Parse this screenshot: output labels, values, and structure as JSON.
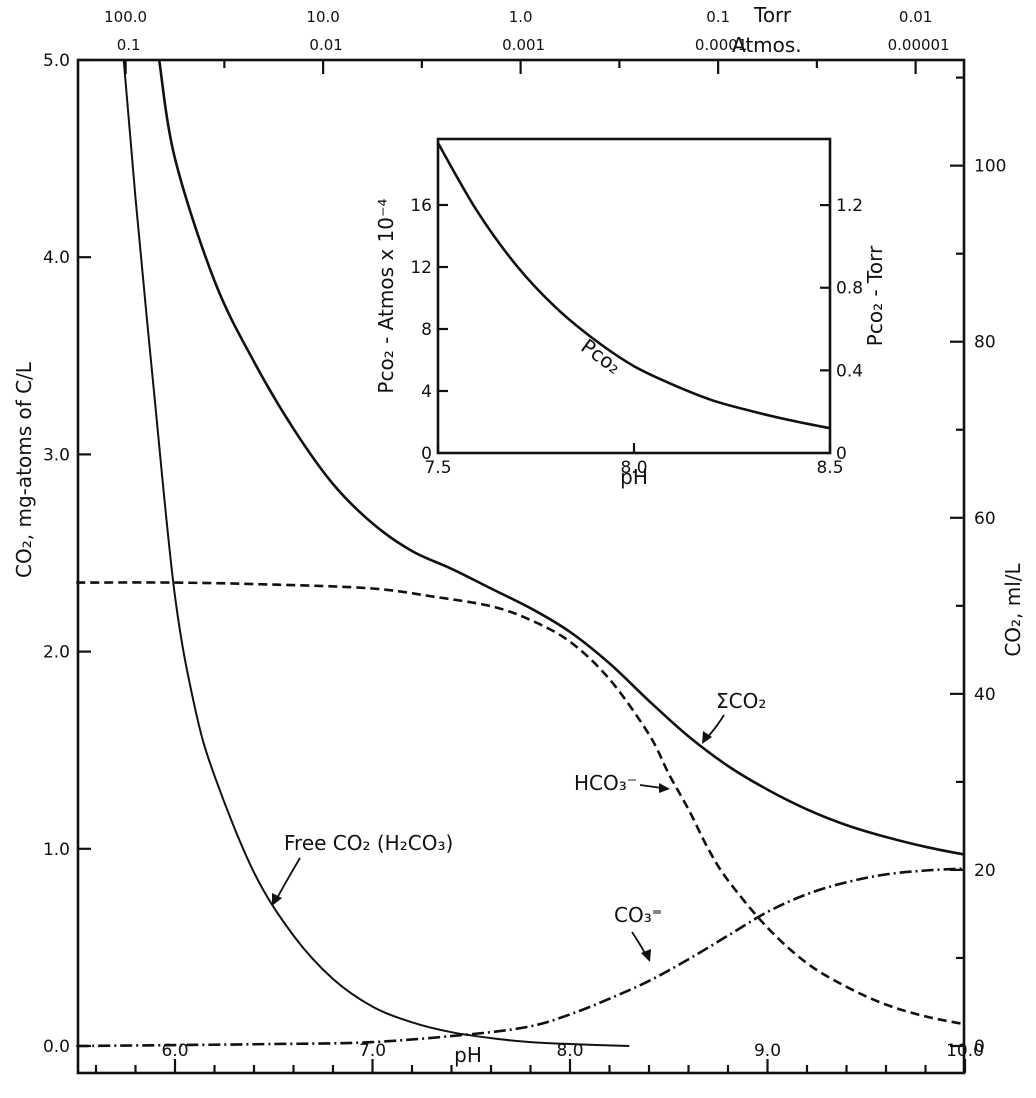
{
  "chart_data": {
    "type": "line",
    "axes": {
      "left_label": "CO₂, mg-atoms of C/L",
      "right_label": "CO₂, ml/L",
      "bottom_label": "pH",
      "top_torr_label": "Torr",
      "top_atm_label": "Atmos.",
      "x_range": [
        5.5,
        10.0
      ],
      "y_range": [
        0.0,
        5.0
      ],
      "right_range": [
        0,
        112
      ],
      "bottom_ticks": [
        "6.0",
        "7.0",
        "8.0",
        "9.0",
        "10.0"
      ],
      "left_ticks": [
        "0.0",
        "1.0",
        "2.0",
        "3.0",
        "4.0",
        "5.0"
      ],
      "right_ticks": [
        "0",
        "20",
        "40",
        "60",
        "80",
        "100"
      ],
      "top_torr_ticks": [
        "100.0",
        "10.0",
        "1.0",
        "0.1",
        "0.01"
      ],
      "top_atm_ticks": [
        "0.1",
        "0.01",
        "0.001",
        "0.0001",
        "0.00001"
      ]
    },
    "series": [
      {
        "name": "ΣCO₂",
        "style": "solid",
        "x": [
          5.92,
          6.0,
          6.2,
          6.4,
          6.6,
          6.8,
          7.0,
          7.2,
          7.4,
          7.6,
          7.8,
          8.0,
          8.2,
          8.4,
          8.6,
          8.8,
          9.0,
          9.2,
          9.4,
          9.6,
          9.8,
          10.0
        ],
        "y": [
          5.0,
          4.5,
          3.88,
          3.47,
          3.13,
          2.85,
          2.65,
          2.51,
          2.42,
          2.32,
          2.22,
          2.1,
          1.94,
          1.75,
          1.57,
          1.42,
          1.3,
          1.2,
          1.12,
          1.06,
          1.01,
          0.97
        ]
      },
      {
        "name": "HCO₃⁻",
        "style": "dashed",
        "x": [
          5.5,
          6.0,
          6.5,
          7.0,
          7.3,
          7.6,
          7.8,
          8.0,
          8.2,
          8.4,
          8.5,
          8.6,
          8.7,
          8.8,
          9.0,
          9.2,
          9.4,
          9.6,
          9.8,
          10.0
        ],
        "y": [
          2.35,
          2.35,
          2.34,
          2.32,
          2.28,
          2.23,
          2.16,
          2.05,
          1.86,
          1.58,
          1.38,
          1.2,
          1.0,
          0.84,
          0.6,
          0.42,
          0.3,
          0.21,
          0.15,
          0.11
        ]
      },
      {
        "name": "Free CO₂ (H₂CO₃)",
        "style": "solid",
        "x": [
          5.74,
          5.8,
          5.9,
          6.0,
          6.1,
          6.2,
          6.4,
          6.6,
          6.8,
          7.0,
          7.2,
          7.4,
          7.6,
          7.8,
          8.0,
          8.3
        ],
        "y": [
          5.0,
          4.3,
          3.25,
          2.28,
          1.72,
          1.37,
          0.88,
          0.56,
          0.34,
          0.2,
          0.12,
          0.07,
          0.04,
          0.02,
          0.01,
          0.0
        ]
      },
      {
        "name": "CO₃⁼",
        "style": "dash-dot",
        "x": [
          5.5,
          6.5,
          7.0,
          7.5,
          7.8,
          8.0,
          8.2,
          8.4,
          8.6,
          8.8,
          9.0,
          9.2,
          9.4,
          9.6,
          9.8,
          10.0
        ],
        "y": [
          0.0,
          0.01,
          0.02,
          0.06,
          0.1,
          0.16,
          0.24,
          0.33,
          0.44,
          0.56,
          0.68,
          0.77,
          0.83,
          0.87,
          0.89,
          0.9
        ]
      }
    ],
    "annotations": {
      "sum": "ΣCO₂",
      "bicarbonate": "HCO₃⁻",
      "free": "Free CO₂ (H₂CO₃)",
      "carbonate": "CO₃⁼"
    },
    "inset": {
      "type": "line",
      "xlabel": "pH",
      "left_label": "Pco₂ - Atmos x 10⁻⁴",
      "right_label": "Pco₂ - Torr",
      "curve_label": "Pco₂",
      "x_range": [
        7.5,
        8.5
      ],
      "y_range": [
        0,
        20
      ],
      "right_range": [
        0,
        1.52
      ],
      "x_ticks": [
        "7.5",
        "8.0",
        "8.5"
      ],
      "left_ticks": [
        "0",
        "4",
        "8",
        "12",
        "16"
      ],
      "right_ticks": [
        "0",
        "0.4",
        "0.8",
        "1.2"
      ],
      "series": [
        {
          "name": "Pco₂",
          "x": [
            7.5,
            7.6,
            7.7,
            7.8,
            7.9,
            8.0,
            8.1,
            8.2,
            8.3,
            8.4,
            8.5
          ],
          "y": [
            20.0,
            15.6,
            12.1,
            9.4,
            7.3,
            5.6,
            4.4,
            3.4,
            2.7,
            2.1,
            1.6
          ]
        }
      ]
    }
  }
}
